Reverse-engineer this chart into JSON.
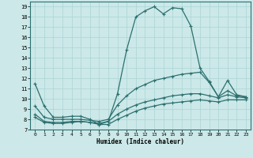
{
  "title": "",
  "xlabel": "Humidex (Indice chaleur)",
  "ylabel": "",
  "xlim": [
    -0.5,
    23.5
  ],
  "ylim": [
    7,
    19.5
  ],
  "xticks": [
    0,
    1,
    2,
    3,
    4,
    5,
    6,
    7,
    8,
    9,
    10,
    11,
    12,
    13,
    14,
    15,
    16,
    17,
    18,
    19,
    20,
    21,
    22,
    23
  ],
  "yticks": [
    7,
    8,
    9,
    10,
    11,
    12,
    13,
    14,
    15,
    16,
    17,
    18,
    19
  ],
  "bg_color": "#cce8e8",
  "grid_color": "#aad4d4",
  "line_color": "#2d7070",
  "lines": [
    {
      "x": [
        0,
        1,
        2,
        3,
        4,
        5,
        6,
        7,
        8,
        9,
        10,
        11,
        12,
        13,
        14,
        15,
        16,
        17,
        18,
        19,
        20,
        21,
        22,
        23
      ],
      "y": [
        11.5,
        9.3,
        8.2,
        8.2,
        8.3,
        8.3,
        8.0,
        7.5,
        7.8,
        10.5,
        14.8,
        18.0,
        18.6,
        19.0,
        18.3,
        18.9,
        18.8,
        17.1,
        13.0,
        11.7,
        10.2,
        10.8,
        10.3,
        10.2
      ]
    },
    {
      "x": [
        0,
        1,
        2,
        3,
        4,
        5,
        6,
        7,
        8,
        9,
        10,
        11,
        12,
        13,
        14,
        15,
        16,
        17,
        18,
        19,
        20,
        21,
        22,
        23
      ],
      "y": [
        9.3,
        8.2,
        8.0,
        8.0,
        8.0,
        8.0,
        7.9,
        7.8,
        8.0,
        9.4,
        10.3,
        11.0,
        11.4,
        11.8,
        12.0,
        12.2,
        12.4,
        12.5,
        12.6,
        11.6,
        10.2,
        11.8,
        10.4,
        10.2
      ]
    },
    {
      "x": [
        0,
        1,
        2,
        3,
        4,
        5,
        6,
        7,
        8,
        9,
        10,
        11,
        12,
        13,
        14,
        15,
        16,
        17,
        18,
        19,
        20,
        21,
        22,
        23
      ],
      "y": [
        8.5,
        7.8,
        7.7,
        7.7,
        7.8,
        7.8,
        7.7,
        7.6,
        7.8,
        8.5,
        9.0,
        9.4,
        9.7,
        9.9,
        10.1,
        10.3,
        10.4,
        10.5,
        10.5,
        10.3,
        10.1,
        10.4,
        10.2,
        10.1
      ]
    },
    {
      "x": [
        0,
        1,
        2,
        3,
        4,
        5,
        6,
        7,
        8,
        9,
        10,
        11,
        12,
        13,
        14,
        15,
        16,
        17,
        18,
        19,
        20,
        21,
        22,
        23
      ],
      "y": [
        8.2,
        7.7,
        7.6,
        7.6,
        7.7,
        7.8,
        7.7,
        7.5,
        7.5,
        8.0,
        8.4,
        8.8,
        9.1,
        9.3,
        9.5,
        9.6,
        9.7,
        9.8,
        9.9,
        9.8,
        9.7,
        9.9,
        9.9,
        9.9
      ]
    }
  ]
}
